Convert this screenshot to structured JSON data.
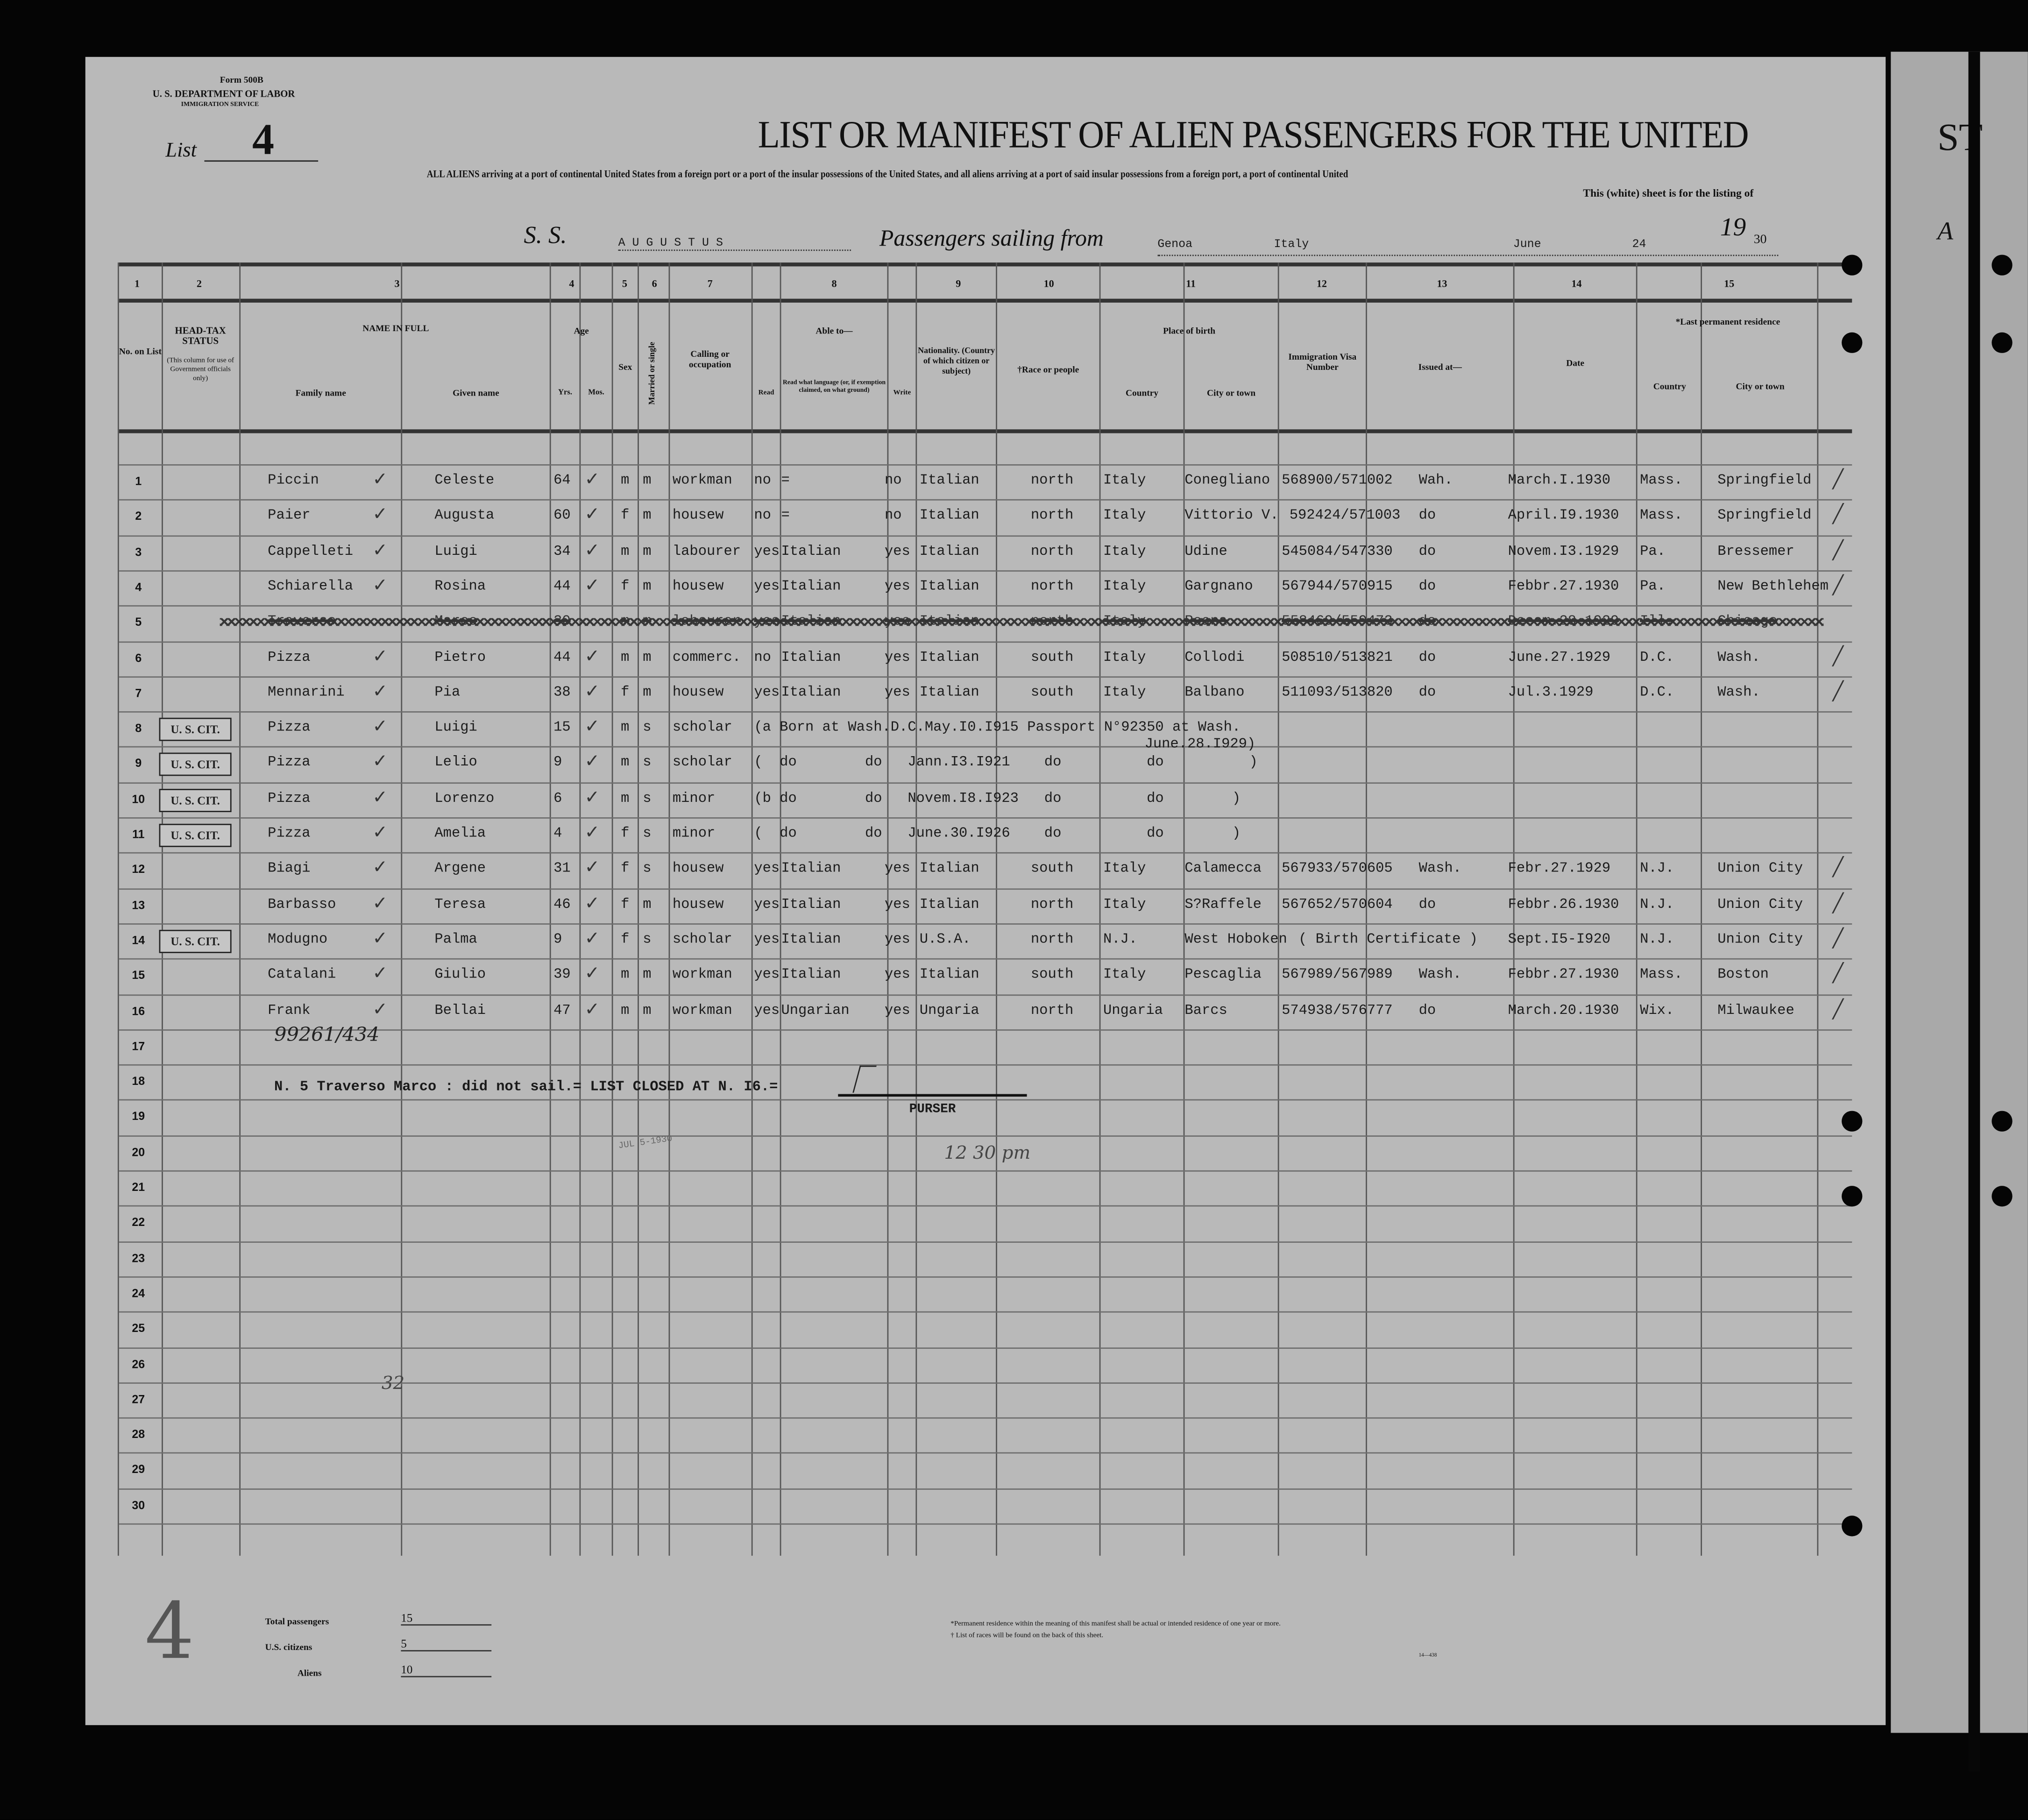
{
  "form": {
    "form_number": "Form 500B",
    "department": "U. S. DEPARTMENT OF LABOR",
    "service": "IMMIGRATION SERVICE",
    "list_label": "List",
    "list_number": "4"
  },
  "title": "LIST OR MANIFEST OF ALIEN PASSENGERS FOR THE UNITED",
  "subtitle_line1": "ALL ALIENS arriving at a port of continental United States from a foreign port or a port of the insular possessions of the United States, and all aliens arriving at a port of said insular possessions from a foreign port, a port of continental United",
  "subtitle_line2": "This (white) sheet is for the listing of",
  "voyage": {
    "ss_label": "S. S.",
    "ship": "A U G U S T U S",
    "sailing_label": "Passengers sailing from",
    "port": "Genoa",
    "country": "Italy",
    "month": "June",
    "day": "24",
    "year_prefix": "19",
    "year_suffix": "30"
  },
  "column_numbers": [
    "1",
    "2",
    "3",
    "4",
    "5",
    "6",
    "7",
    "8",
    "9",
    "10",
    "11",
    "12",
    "13",
    "14",
    "15"
  ],
  "headers": {
    "no_on_list": "No. on List",
    "head_tax": "HEAD-TAX STATUS",
    "head_tax_note": "(This column for use of Government officials only)",
    "name_in_full": "NAME IN FULL",
    "family_name": "Family name",
    "given_name": "Given name",
    "age": "Age",
    "yrs": "Yrs.",
    "mos": "Mos.",
    "sex": "Sex",
    "married": "Married or single",
    "calling": "Calling or occupation",
    "able_to": "Able to—",
    "read": "Read",
    "read_language": "Read what language (or, if exemption claimed, on what ground)",
    "write": "Write",
    "nationality": "Nationality. (Country of which citizen or subject)",
    "race": "†Race or people",
    "place_of_birth": "Place of birth",
    "country": "Country",
    "city": "City or town",
    "visa": "Immigration Visa Number",
    "issued_at": "Issued at—",
    "date": "Date",
    "last_residence": "*Last permanent residence",
    "res_country": "Country",
    "res_city": "City or town"
  },
  "rows": [
    {
      "no": "1",
      "family": "Piccin",
      "given": "Celeste",
      "age": "64",
      "sex": "m",
      "marital": "m",
      "occupation": "workman",
      "read": "no",
      "language": "=",
      "write": "no",
      "nationality": "Italian",
      "race": "north",
      "country": "Italy",
      "city": "Conegliano",
      "visa": "568900/571002",
      "issued": "Wah.",
      "date": "March.I.1930",
      "res_country": "Mass.",
      "res_city": "Springfield"
    },
    {
      "no": "2",
      "family": "Paier",
      "given": "Augusta",
      "age": "60",
      "sex": "f",
      "marital": "m",
      "occupation": "housew",
      "read": "no",
      "language": "=",
      "write": "no",
      "nationality": "Italian",
      "race": "north",
      "country": "Italy",
      "city": "Vittorio V.",
      "visa": "592424/571003",
      "issued": "do",
      "date": "April.I9.1930",
      "res_country": "Mass.",
      "res_city": "Springfield"
    },
    {
      "no": "3",
      "family": "Cappelleti",
      "given": "Luigi",
      "age": "34",
      "sex": "m",
      "marital": "m",
      "occupation": "labourer",
      "read": "yes",
      "language": "Italian",
      "write": "yes",
      "nationality": "Italian",
      "race": "north",
      "country": "Italy",
      "city": "Udine",
      "visa": "545084/547330",
      "issued": "do",
      "date": "Novem.I3.1929",
      "res_country": "Pa.",
      "res_city": "Bressemer"
    },
    {
      "no": "4",
      "family": "Schiarella",
      "given": "Rosina",
      "age": "44",
      "sex": "f",
      "marital": "m",
      "occupation": "housew",
      "read": "yes",
      "language": "Italian",
      "write": "yes",
      "nationality": "Italian",
      "race": "north",
      "country": "Italy",
      "city": "Gargnano",
      "visa": "567944/570915",
      "issued": "do",
      "date": "Febbr.27.1930",
      "res_country": "Pa.",
      "res_city": "New Bethlehem"
    },
    {
      "no": "5",
      "struck": true,
      "family": "Traverso",
      "given": "Marco",
      "age": "30",
      "sex": "m",
      "marital": "m",
      "occupation": "labourer",
      "read": "yes",
      "language": "Italian",
      "write": "yes",
      "nationality": "Italian",
      "race": "north",
      "country": "Italy",
      "city": "Roana",
      "visa": "558469/559473",
      "issued": "do",
      "date": "Decem.28.1929",
      "res_country": "Ill.",
      "res_city": "Chicago"
    },
    {
      "no": "6",
      "family": "Pizza",
      "given": "Pietro",
      "age": "44",
      "sex": "m",
      "marital": "m",
      "occupation": "commerc.",
      "read": "no",
      "language": "Italian",
      "write": "yes",
      "nationality": "Italian",
      "race": "south",
      "country": "Italy",
      "city": "Collodi",
      "visa": "508510/513821",
      "issued": "do",
      "date": "June.27.1929",
      "res_country": "D.C.",
      "res_city": "Wash."
    },
    {
      "no": "7",
      "family": "Mennarini",
      "given": "Pia",
      "age": "38",
      "sex": "f",
      "marital": "m",
      "occupation": "housew",
      "read": "yes",
      "language": "Italian",
      "write": "yes",
      "nationality": "Italian",
      "race": "south",
      "country": "Italy",
      "city": "Balbano",
      "visa": "511093/513820",
      "issued": "do",
      "date": "Jul.3.1929",
      "res_country": "D.C.",
      "res_city": "Wash."
    },
    {
      "no": "8",
      "head_tax": "U. S. CIT.",
      "family": "Pizza",
      "given": "Luigi",
      "age": "15",
      "sex": "m",
      "marital": "s",
      "occupation": "scholar",
      "note": "(a Born at Wash.D.C.May.I0.I915 Passport N°92350 at Wash.",
      "note2": "June.28.I929)"
    },
    {
      "no": "9",
      "head_tax": "U. S. CIT.",
      "family": "Pizza",
      "given": "Lelio",
      "age": "9",
      "sex": "m",
      "marital": "s",
      "occupation": "scholar",
      "note": "(  do        do   Jann.I3.I921    do          do          )"
    },
    {
      "no": "10",
      "head_tax": "U. S. CIT.",
      "family": "Pizza",
      "given": "Lorenzo",
      "age": "6",
      "sex": "m",
      "marital": "s",
      "occupation": "minor",
      "note": "(b do        do   Novem.I8.I923   do          do        )"
    },
    {
      "no": "11",
      "head_tax": "U. S. CIT.",
      "family": "Pizza",
      "given": "Amelia",
      "age": "4",
      "sex": "f",
      "marital": "s",
      "occupation": "minor",
      "note": "(  do        do   June.30.I926    do          do        )"
    },
    {
      "no": "12",
      "family": "Biagi",
      "given": "Argene",
      "age": "31",
      "sex": "f",
      "marital": "s",
      "occupation": "housew",
      "read": "yes",
      "language": "Italian",
      "write": "yes",
      "nationality": "Italian",
      "race": "south",
      "country": "Italy",
      "city": "Calamecca",
      "visa": "567933/570605",
      "issued": "Wash.",
      "date": "Febr.27.1929",
      "res_country": "N.J.",
      "res_city": "Union City"
    },
    {
      "no": "13",
      "family": "Barbasso",
      "given": "Teresa",
      "age": "46",
      "sex": "f",
      "marital": "m",
      "occupation": "housew",
      "read": "yes",
      "language": "Italian",
      "write": "yes",
      "nationality": "Italian",
      "race": "north",
      "country": "Italy",
      "city": "S?Raffele",
      "visa": "567652/570604",
      "issued": "do",
      "date": "Febbr.26.1930",
      "res_country": "N.J.",
      "res_city": "Union City"
    },
    {
      "no": "14",
      "head_tax": "U. S. CIT.",
      "family": "Modugno",
      "given": "Palma",
      "age": "9",
      "sex": "f",
      "marital": "s",
      "occupation": "scholar",
      "read": "yes",
      "language": "Italian",
      "write": "yes",
      "nationality": "U.S.A.",
      "race": "north",
      "country": "N.J.",
      "city": "West Hoboken",
      "visa": "( Birth Certificate )",
      "date": "Sept.I5-I920",
      "res_country": "N.J.",
      "res_city": "Union City"
    },
    {
      "no": "15",
      "family": "Catalani",
      "given": "Giulio",
      "age": "39",
      "sex": "m",
      "marital": "m",
      "occupation": "workman",
      "read": "yes",
      "language": "Italian",
      "write": "yes",
      "nationality": "Italian",
      "race": "south",
      "country": "Italy",
      "city": "Pescaglia",
      "visa": "567989/567989",
      "issued": "Wash.",
      "date": "Febbr.27.1930",
      "res_country": "Mass.",
      "res_city": "Boston"
    },
    {
      "no": "16",
      "family": "Frank",
      "given": "Bellai",
      "age": "47",
      "sex": "m",
      "marital": "m",
      "occupation": "workman",
      "read": "yes",
      "language": "Ungarian",
      "write": "yes",
      "nationality": "Ungaria",
      "race": "north",
      "country": "Ungaria",
      "city": "Barcs",
      "visa": "574938/576777",
      "issued": "do",
      "date": "March.20.1930",
      "res_country": "Wix.",
      "res_city": "Milwaukee"
    }
  ],
  "row_count": 30,
  "closing_note": "N. 5 Traverso Marco : did not sail.= LIST CLOSED AT N. I6.=",
  "purser_label": "PURSER",
  "stamp_date": "JUL 5-1930",
  "handwritten": {
    "inspector_note": "12 30 pm",
    "alien_number": "99261/434",
    "page_mark": "32",
    "big_mark": "4"
  },
  "totals": {
    "total_label": "Total passengers",
    "total_value": "15",
    "citizens_label": "U.S. citizens",
    "citizens_value": "5",
    "aliens_label": "Aliens",
    "aliens_value": "10"
  },
  "footnotes": {
    "residence": "*Permanent residence within the meaning of this manifest shall be actual or intended residence of one year or more.",
    "races": "† List of races will be found on the back of this sheet.",
    "print_code": "14—438"
  },
  "adjacent_page": {
    "title_fragment": "ST",
    "ss_fragment": "A"
  }
}
